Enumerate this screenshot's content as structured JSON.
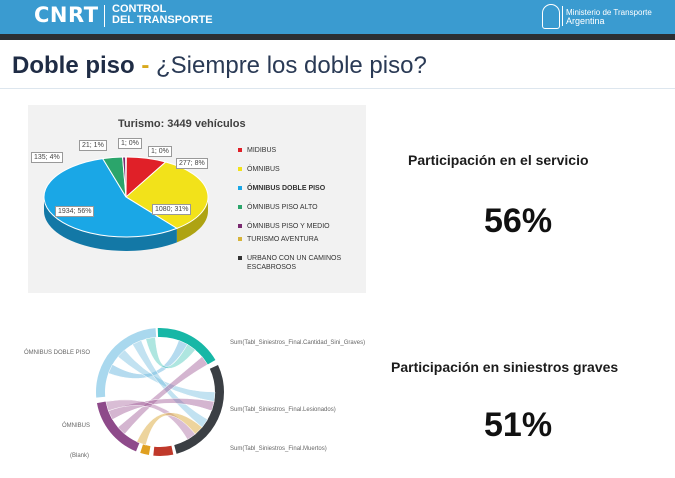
{
  "header": {
    "logo_text": "CNRT",
    "logo_sub1": "CONTROL",
    "logo_sub2": "DEL TRANSPORTE",
    "ministry_line1": "Ministerio de Transporte",
    "ministry_line2": "Argentina"
  },
  "slide": {
    "title_bold": "Doble piso",
    "title_dash": " - ",
    "title_rest": "¿Siempre los doble piso?"
  },
  "stats": {
    "service_label": "Participación en el servicio",
    "service_value": "56%",
    "accidents_label": "Participación en siniestros graves",
    "accidents_value": "51%"
  },
  "colors": {
    "header_blue": "#3a9bd0",
    "header_dark": "#2b2f33",
    "pie_midibus": "#e02028",
    "pie_omnibus": "#f2e21a",
    "pie_doble_piso": "#1aa7e6",
    "pie_piso_alto": "#2ba56b",
    "pie_piso_medio": "#7a2a70",
    "pie_turismo": "#d6b43a",
    "pie_urbano": "#333333"
  },
  "chart_data": [
    {
      "type": "pie",
      "title": "Turismo: 3449 vehículos",
      "legend": [
        "MIDIBUS",
        "ÓMNIBUS",
        "ÓMNIBUS DOBLE PISO",
        "ÓMNIBUS PISO ALTO",
        "ÓMNIBUS PISO Y MEDIO",
        "TURISMO AVENTURA",
        "URBANO CON UN CAMINOS ESCABROSOS"
      ],
      "legend_bold_index": 2,
      "slices": [
        {
          "label": "MIDIBUS",
          "value": 277,
          "percent": 8,
          "callout": "277; 8%",
          "color_key": "pie_midibus"
        },
        {
          "label": "ÓMNIBUS",
          "value": 1080,
          "percent": 31,
          "callout": "1080; 31%",
          "color_key": "pie_omnibus"
        },
        {
          "label": "ÓMNIBUS DOBLE PISO",
          "value": 1934,
          "percent": 56,
          "callout": "1934; 56%",
          "color_key": "pie_doble_piso"
        },
        {
          "label": "ÓMNIBUS PISO ALTO",
          "value": 135,
          "percent": 4,
          "callout": "135; 4%",
          "color_key": "pie_piso_alto"
        },
        {
          "label": "ÓMNIBUS PISO Y MEDIO",
          "value": 21,
          "percent": 1,
          "callout": "21; 1%",
          "color_key": "pie_piso_medio"
        },
        {
          "label": "TURISMO AVENTURA",
          "value": 1,
          "percent": 0,
          "callout": "1; 0%",
          "color_key": "pie_turismo"
        },
        {
          "label": "URBANO CON UN CAMINOS ESCABROSOS",
          "value": 1,
          "percent": 0,
          "callout": "1; 0%",
          "color_key": "pie_urbano"
        }
      ],
      "legend_placement": "right"
    },
    {
      "type": "chord",
      "left_labels": [
        "ÓMNIBUS DOBLE PISO",
        "ÓMNIBUS",
        "(Blank)"
      ],
      "right_labels": [
        "Sum(Tabl_Siniestros_Final.Cantidad_Sini_Graves)",
        "Sum(Tabl_Siniestros_Final.Lesionados)",
        "Sum(Tabl_Siniestros_Final.Muertos)"
      ]
    }
  ]
}
